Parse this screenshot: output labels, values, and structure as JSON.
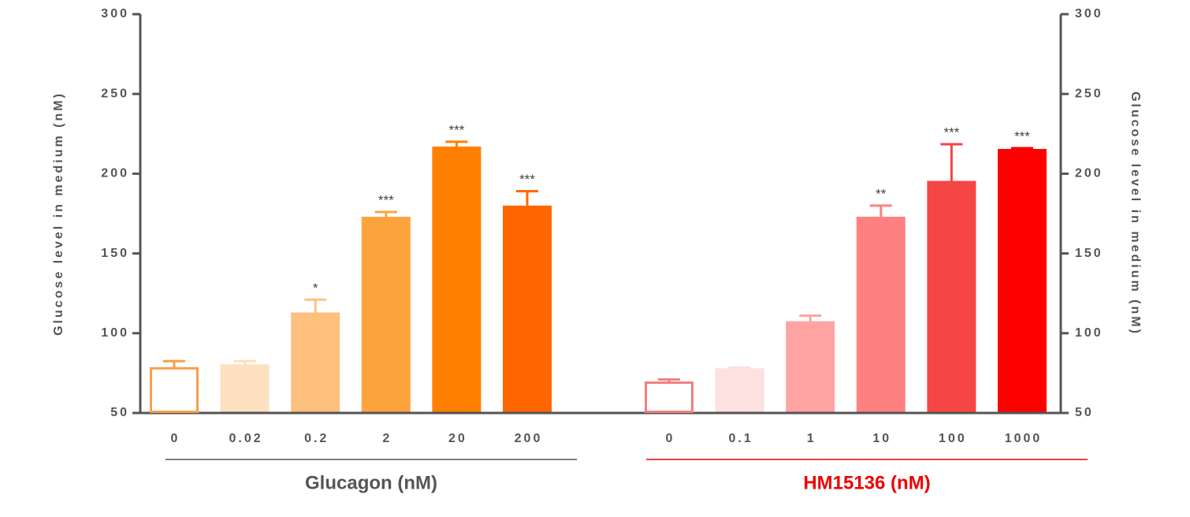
{
  "chart_data": [
    {
      "type": "bar",
      "xlabel": "Glucagon (nM)",
      "xlabel_color": "#555555",
      "underline_color": "#555555",
      "ylabel": "Glucose level in medium (nM)",
      "axis_side": "left",
      "categories": [
        "0",
        "0.02",
        "0.2",
        "2",
        "20",
        "200"
      ],
      "values": [
        78,
        80.5,
        113,
        173,
        217,
        180
      ],
      "errors": [
        4.5,
        2,
        8,
        3,
        3,
        9
      ],
      "annotations": [
        null,
        null,
        "*",
        "***",
        "***",
        "***"
      ],
      "colors": [
        "#f5a04a",
        "#fde0c0",
        "#fec07e",
        "#fda33e",
        "#ff8000",
        "#ff6600"
      ],
      "hollow": [
        true,
        false,
        false,
        false,
        false,
        false
      ],
      "ylim": [
        50,
        300
      ],
      "yticks": [
        50,
        100,
        150,
        200,
        250,
        300
      ]
    },
    {
      "type": "bar",
      "xlabel": "HM15136 (nM)",
      "xlabel_color": "#ee0000",
      "underline_color": "#ee0000",
      "ylabel": "Glucose level in medium (nM)",
      "axis_side": "right",
      "categories": [
        "0",
        "0.1",
        "1",
        "10",
        "100",
        "1000"
      ],
      "values": [
        69,
        78,
        107.5,
        173,
        195.5,
        215.5
      ],
      "errors": [
        2,
        0.5,
        3.5,
        7,
        23,
        0.5
      ],
      "annotations": [
        null,
        null,
        null,
        "**",
        "***",
        "***"
      ],
      "colors": [
        "#f08080",
        "#fde0e0",
        "#ffa3a3",
        "#ff8080",
        "#f54545",
        "#ff0000"
      ],
      "hollow": [
        true,
        false,
        false,
        false,
        false,
        false
      ],
      "ylim": [
        50,
        300
      ],
      "yticks": [
        50,
        100,
        150,
        200,
        250,
        300
      ]
    }
  ]
}
